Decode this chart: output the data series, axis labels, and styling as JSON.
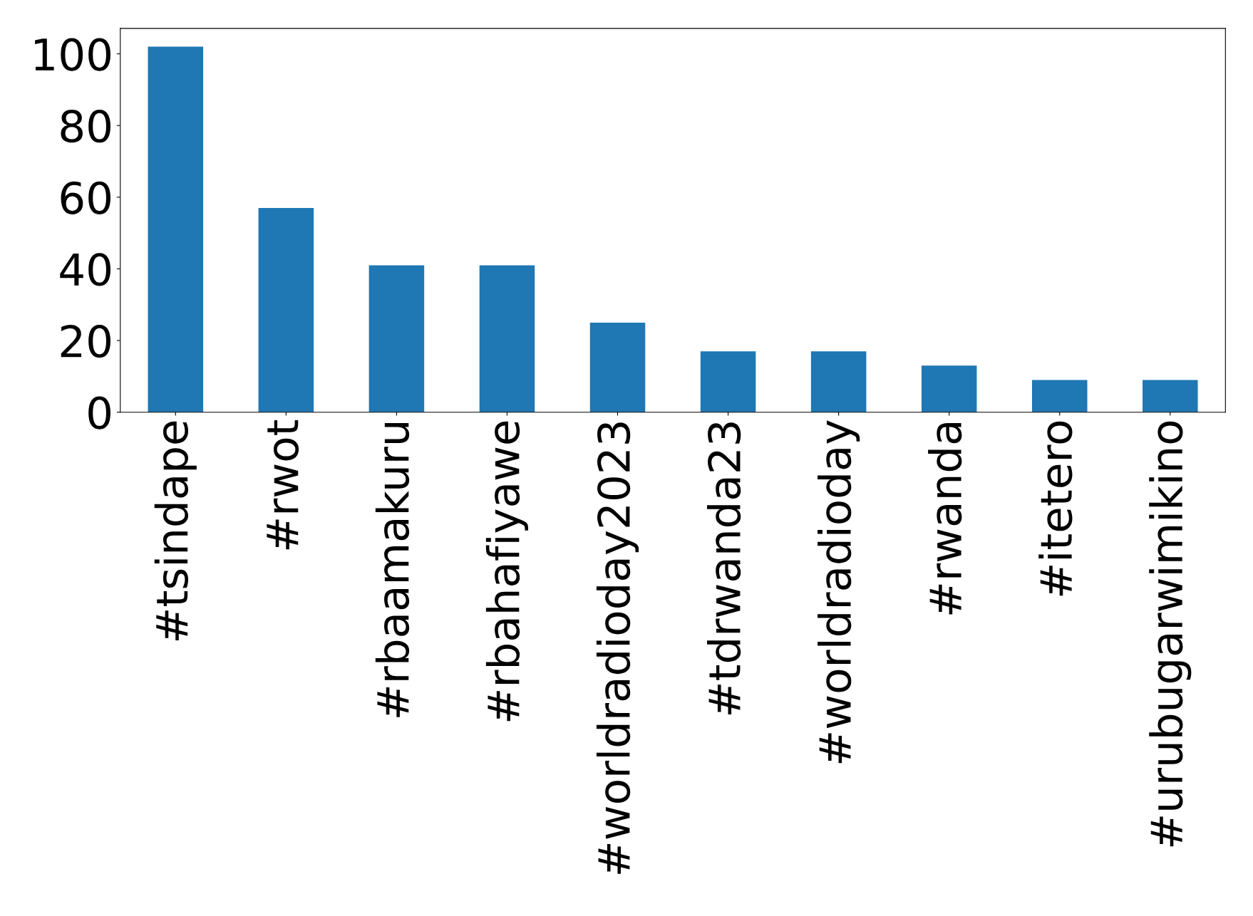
{
  "chart_data": {
    "type": "bar",
    "categories": [
      "#tsindape",
      "#rwot",
      "#rbaamakuru",
      "#rbahafiyawe",
      "#worldradioday2023",
      "#tdrwanda23",
      "#worldradioday",
      "#rwanda",
      "#itetero",
      "#urubugarwimikino"
    ],
    "values": [
      102,
      57,
      41,
      41,
      25,
      17,
      17,
      13,
      9,
      9
    ],
    "color": "#1f77b4",
    "ylim": [
      0,
      107.1
    ],
    "yticks": [
      0,
      20,
      40,
      60,
      80,
      100
    ],
    "grid": false,
    "legend": false
  }
}
